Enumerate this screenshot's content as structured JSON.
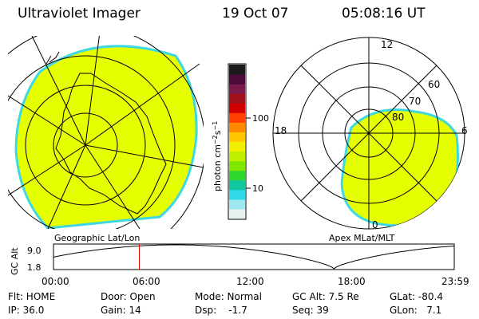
{
  "header": {
    "title": "Ultraviolet Imager",
    "date": "19 Oct 07",
    "time": "05:08:16 UT"
  },
  "colorbar": {
    "label": "photon cm",
    "label_sup1": "−2",
    "label_mid": "s",
    "label_sup2": "−1",
    "ticks": [
      "100",
      "10"
    ],
    "colors": [
      "#1a1a1a",
      "#4a0a3a",
      "#7a1a4a",
      "#a0101a",
      "#d00000",
      "#ff4000",
      "#ff8a00",
      "#ffc800",
      "#f0f000",
      "#c0f000",
      "#80e800",
      "#30d830",
      "#10c8a0",
      "#30d8e8",
      "#a0e8f0",
      "#e8f0f0"
    ]
  },
  "geo_panel": {
    "caption": "Geographic Lat/Lon",
    "fill_color": "#e6ff00",
    "edge_color": "#40d8e0"
  },
  "apex_panel": {
    "caption": "Apex MLat/MLT",
    "labels": {
      "mlt12": "12",
      "mlt18": "18",
      "mlt6": "6",
      "mlt0": "0",
      "lat60": "60",
      "lat70": "70",
      "lat80": "80"
    }
  },
  "altitude_plot": {
    "ylabel": "GC Alt",
    "ymax_label": "9.0",
    "ymin_label": "1.8",
    "x_ticks": [
      "00:00",
      "06:00",
      "12:00",
      "18:00",
      "23:59"
    ],
    "current_time_hours": 5.14,
    "marker_color": "#e00000"
  },
  "status": {
    "flt": "Flt: HOME",
    "ip": "IP: 36.0",
    "door": "Door: Open",
    "gain": "Gain: 14",
    "mode": "Mode: Normal",
    "dsp": "Dsp:    -1.7",
    "gc_alt": "GC Alt: 7.5 Re",
    "seq": "Seq: 39",
    "glat": "GLat: -80.4",
    "glon": "GLon:   7.1"
  }
}
